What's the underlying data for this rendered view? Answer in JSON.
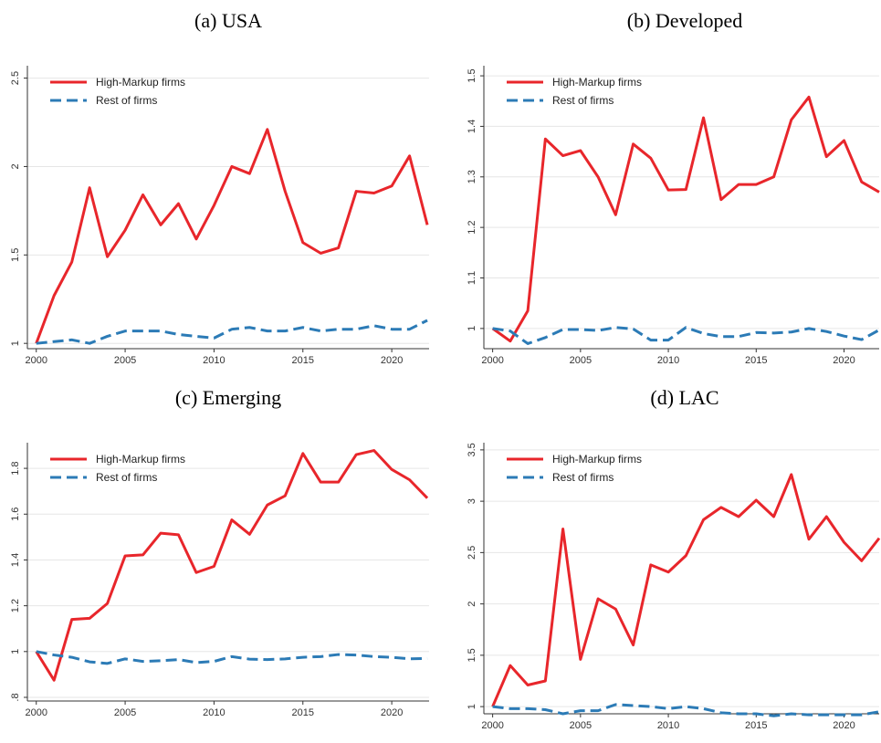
{
  "chart_data": [
    {
      "type": "line",
      "title": "(a) USA",
      "x": [
        2000,
        2001,
        2002,
        2003,
        2004,
        2005,
        2006,
        2007,
        2008,
        2009,
        2010,
        2011,
        2012,
        2013,
        2014,
        2015,
        2016,
        2017,
        2018,
        2019,
        2020,
        2021,
        2022
      ],
      "xlim": [
        1999.5,
        2022.1
      ],
      "xticks": [
        2000,
        2005,
        2010,
        2015,
        2020
      ],
      "ylim": [
        0.97,
        2.57
      ],
      "yticks": [
        1,
        1.5,
        2,
        2.5
      ],
      "grid": true,
      "legend": "top-left",
      "series": [
        {
          "name": "High-Markup firms",
          "color": "#e8262b",
          "dash": false,
          "values": [
            1.0,
            1.27,
            1.46,
            1.88,
            1.49,
            1.64,
            1.84,
            1.67,
            1.79,
            1.59,
            1.78,
            2.0,
            1.96,
            2.21,
            1.86,
            1.57,
            1.51,
            1.54,
            1.86,
            1.85,
            1.89,
            2.06,
            1.67
          ]
        },
        {
          "name": "Rest of firms",
          "color": "#2c7bb6",
          "dash": true,
          "values": [
            1.0,
            1.01,
            1.02,
            1.0,
            1.04,
            1.07,
            1.07,
            1.07,
            1.05,
            1.04,
            1.03,
            1.08,
            1.09,
            1.07,
            1.07,
            1.09,
            1.07,
            1.08,
            1.08,
            1.1,
            1.08,
            1.08,
            1.13
          ]
        }
      ]
    },
    {
      "type": "line",
      "title": "(b) Developed",
      "x": [
        2000,
        2001,
        2002,
        2003,
        2004,
        2005,
        2006,
        2007,
        2008,
        2009,
        2010,
        2011,
        2012,
        2013,
        2014,
        2015,
        2016,
        2017,
        2018,
        2019,
        2020,
        2021,
        2022
      ],
      "xlim": [
        1999.5,
        2022
      ],
      "xticks": [
        2000,
        2005,
        2010,
        2015,
        2020
      ],
      "ylim": [
        0.96,
        1.52
      ],
      "yticks": [
        1,
        1.1,
        1.2,
        1.3,
        1.4,
        1.5
      ],
      "grid": true,
      "legend": "top-left",
      "series": [
        {
          "name": "High-Markup firms",
          "color": "#e8262b",
          "dash": false,
          "values": [
            1.0,
            0.975,
            1.035,
            1.375,
            1.342,
            1.352,
            1.3,
            1.225,
            1.365,
            1.337,
            1.274,
            1.275,
            1.417,
            1.255,
            1.285,
            1.285,
            1.3,
            1.413,
            1.458,
            1.34,
            1.372,
            1.29,
            1.27
          ]
        },
        {
          "name": "Rest of firms",
          "color": "#2c7bb6",
          "dash": true,
          "values": [
            1.0,
            0.995,
            0.97,
            0.982,
            0.998,
            0.998,
            0.996,
            1.002,
            0.999,
            0.977,
            0.977,
            1.002,
            0.99,
            0.984,
            0.984,
            0.992,
            0.991,
            0.993,
            1.0,
            0.994,
            0.985,
            0.978,
            0.997
          ]
        }
      ]
    },
    {
      "type": "line",
      "title": "(c) Emerging",
      "x": [
        2000,
        2001,
        2002,
        2003,
        2004,
        2005,
        2006,
        2007,
        2008,
        2009,
        2010,
        2011,
        2012,
        2013,
        2014,
        2015,
        2016,
        2017,
        2018,
        2019,
        2020,
        2021,
        2022
      ],
      "xlim": [
        1999.5,
        2022.1
      ],
      "xticks": [
        2000,
        2005,
        2010,
        2015,
        2020
      ],
      "ylim": [
        0.784,
        1.912
      ],
      "yticks": [
        {
          "value": 0.8,
          "label": ".8"
        },
        1,
        1.2,
        1.4,
        1.6,
        1.8
      ],
      "grid": true,
      "legend": "top-left",
      "series": [
        {
          "name": "High-Markup firms",
          "color": "#e8262b",
          "dash": false,
          "values": [
            1.0,
            0.875,
            1.14,
            1.145,
            1.21,
            1.418,
            1.422,
            1.517,
            1.51,
            1.345,
            1.372,
            1.575,
            1.512,
            1.64,
            1.68,
            1.865,
            1.74,
            1.74,
            1.86,
            1.878,
            1.795,
            1.75,
            1.67
          ]
        },
        {
          "name": "Rest of firms",
          "color": "#2c7bb6",
          "dash": true,
          "values": [
            1.0,
            0.985,
            0.975,
            0.955,
            0.948,
            0.968,
            0.957,
            0.96,
            0.965,
            0.952,
            0.957,
            0.978,
            0.967,
            0.965,
            0.968,
            0.975,
            0.978,
            0.987,
            0.985,
            0.978,
            0.975,
            0.968,
            0.97
          ]
        }
      ]
    },
    {
      "type": "line",
      "title": "(d) LAC",
      "x": [
        2000,
        2001,
        2002,
        2003,
        2004,
        2005,
        2006,
        2007,
        2008,
        2009,
        2010,
        2011,
        2012,
        2013,
        2014,
        2015,
        2016,
        2017,
        2018,
        2019,
        2020,
        2021,
        2022
      ],
      "xlim": [
        1999.5,
        2022
      ],
      "xticks": [
        2000,
        2005,
        2010,
        2015,
        2020
      ],
      "ylim": [
        0.93,
        3.57
      ],
      "yticks": [
        1,
        1.5,
        2,
        2.5,
        3,
        3.5
      ],
      "grid": true,
      "legend": "top-left",
      "series": [
        {
          "name": "High-Markup firms",
          "color": "#e8262b",
          "dash": false,
          "values": [
            1.0,
            1.4,
            1.21,
            1.25,
            2.73,
            1.46,
            2.05,
            1.95,
            1.6,
            2.38,
            2.31,
            2.47,
            2.82,
            2.94,
            2.85,
            3.01,
            2.85,
            3.26,
            2.63,
            2.85,
            2.6,
            2.42,
            2.64
          ]
        },
        {
          "name": "Rest of firms",
          "color": "#2c7bb6",
          "dash": true,
          "values": [
            1.0,
            0.98,
            0.98,
            0.97,
            0.93,
            0.96,
            0.96,
            1.02,
            1.01,
            1.0,
            0.98,
            1.0,
            0.98,
            0.94,
            0.93,
            0.93,
            0.91,
            0.93,
            0.92,
            0.92,
            0.92,
            0.92,
            0.95
          ]
        }
      ]
    }
  ]
}
